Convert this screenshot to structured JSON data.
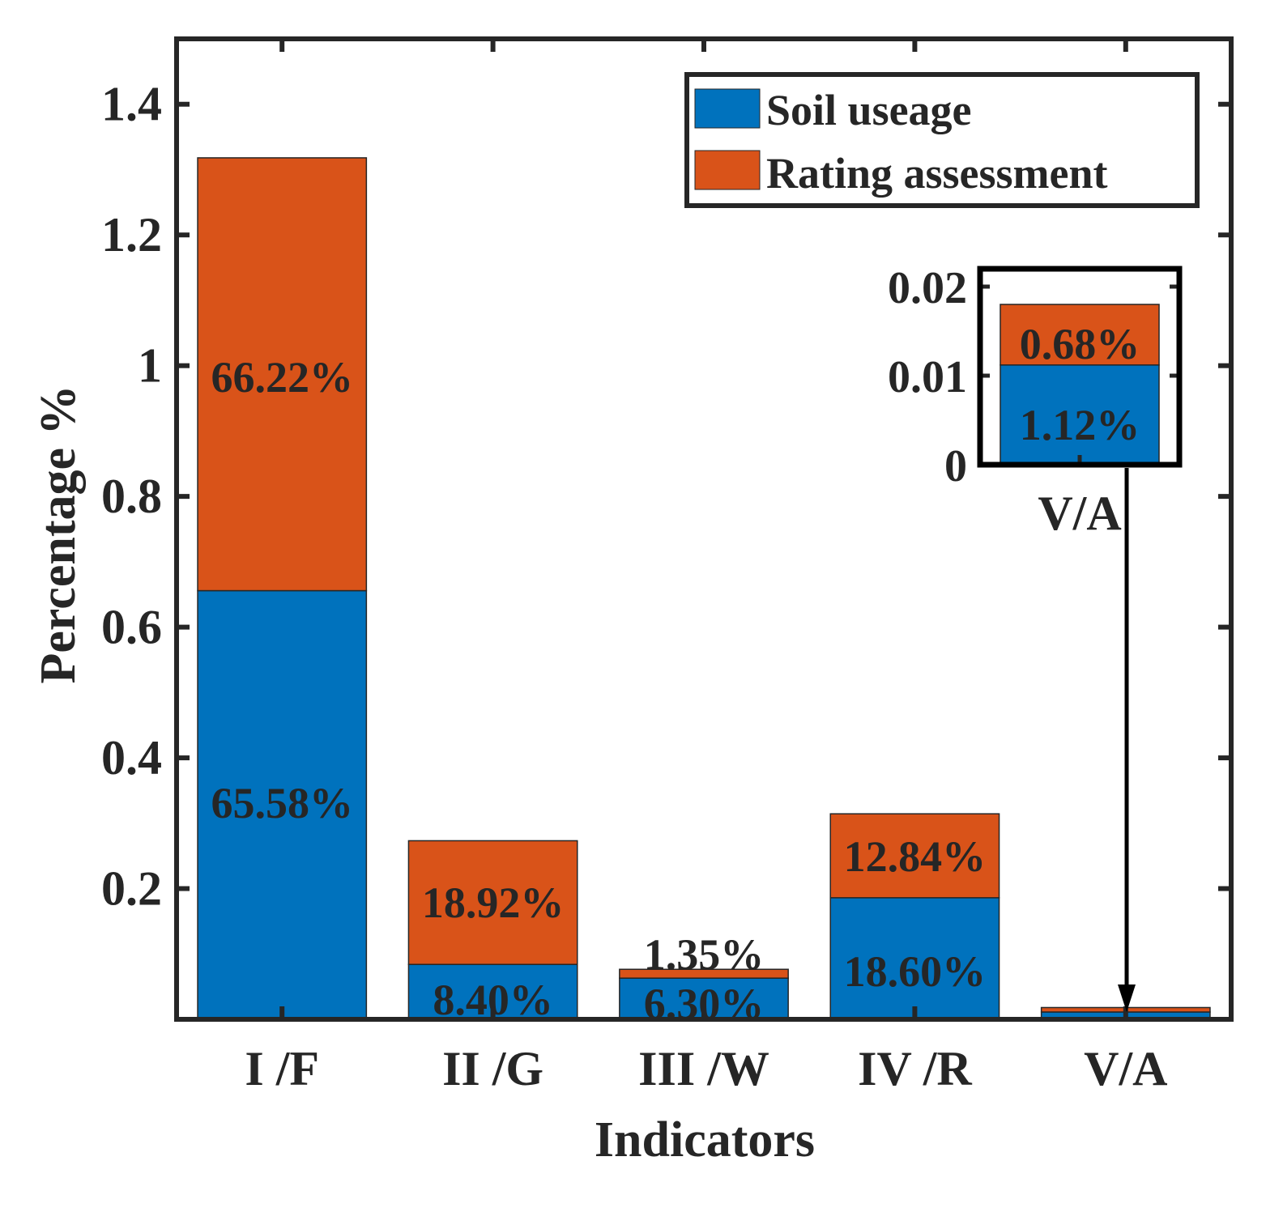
{
  "chart_data": {
    "type": "bar",
    "stacked": true,
    "xlabel": "Indicators",
    "ylabel": "Percentage %",
    "ylim": [
      0,
      1.5
    ],
    "yticks": [
      0.2,
      0.4,
      0.6,
      0.8,
      1,
      1.2,
      1.4
    ],
    "ytick_labels": [
      "0.2",
      "0.4",
      "0.6",
      "0.8",
      "1",
      "1.2",
      "1.4"
    ],
    "categories": [
      "I /F",
      "II /G",
      "III /W",
      "IV /R",
      "V/A"
    ],
    "legend_position": "top-right",
    "series": [
      {
        "name": "Soil useage",
        "color": "#0072BD",
        "values": [
          0.6558,
          0.084,
          0.063,
          0.186,
          0.0112
        ],
        "labels": [
          "65.58%",
          "8.40%",
          "6.30%",
          "18.60%",
          "1.12%"
        ]
      },
      {
        "name": "Rating assessment",
        "color": "#D95319",
        "values": [
          0.6622,
          0.1892,
          0.0135,
          0.1284,
          0.0068
        ],
        "labels": [
          "66.22%",
          "18.92%",
          "1.35%",
          "12.84%",
          "0.68%"
        ]
      }
    ],
    "inset": {
      "category": "V/A",
      "ylim": [
        0,
        0.022
      ],
      "yticks": [
        0,
        0.01,
        0.02
      ],
      "ytick_labels": [
        "0",
        "0.01",
        "0.02"
      ],
      "soil_value": 0.0112,
      "rating_value": 0.0068,
      "soil_label": "1.12%",
      "rating_label": "0.68%",
      "xtick_label": "V/A"
    }
  }
}
